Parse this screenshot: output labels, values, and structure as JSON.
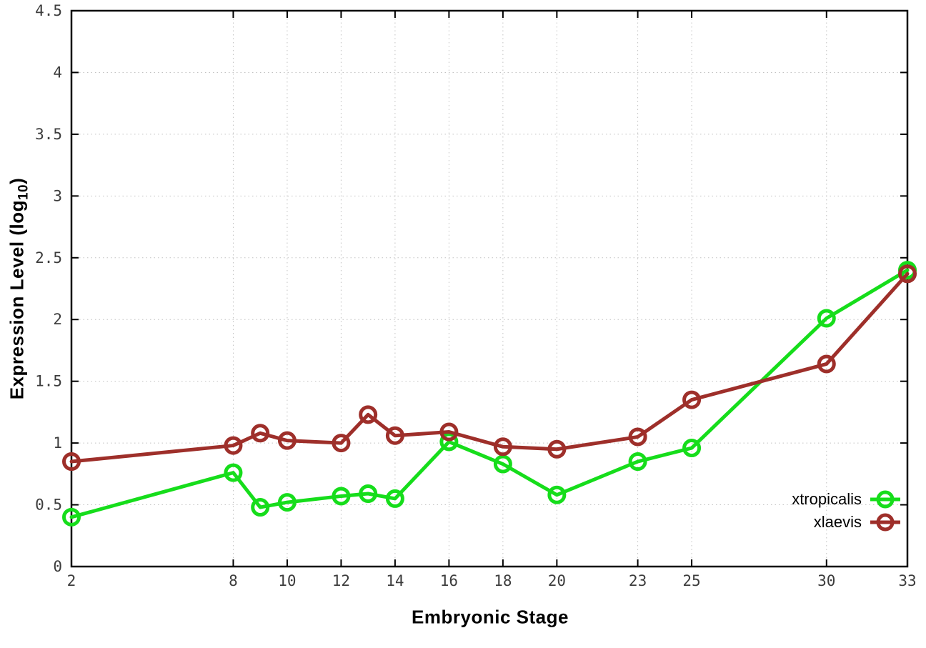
{
  "chart_data": {
    "type": "line",
    "title": "",
    "xlabel": "Embryonic Stage",
    "ylabel_pre": "Expression Level (log",
    "ylabel_sub": "10",
    "ylabel_post": ")",
    "x": [
      2,
      8,
      9,
      10,
      12,
      13,
      14,
      16,
      18,
      20,
      23,
      25,
      30,
      33
    ],
    "series": [
      {
        "name": "xtropicalis",
        "color": "#16dd1b",
        "values": [
          0.4,
          0.76,
          0.48,
          0.52,
          0.57,
          0.59,
          0.55,
          1.01,
          0.83,
          0.58,
          0.85,
          0.96,
          2.01,
          2.4
        ]
      },
      {
        "name": "xlaevis",
        "color": "#9e2f2a",
        "values": [
          0.85,
          0.98,
          1.08,
          1.02,
          1.0,
          1.23,
          1.06,
          1.09,
          0.97,
          0.95,
          1.05,
          1.35,
          1.64,
          2.37
        ]
      }
    ],
    "xlim": [
      2,
      33
    ],
    "ylim": [
      0,
      4.5
    ],
    "xtick_values": [
      2,
      8,
      10,
      12,
      14,
      16,
      18,
      20,
      23,
      25,
      30,
      33
    ],
    "xtick_labels": [
      "2",
      "8",
      "10",
      "12",
      "14",
      "16",
      "18",
      "20",
      "23",
      "25",
      "30",
      "33"
    ],
    "ytick_values": [
      0,
      0.5,
      1,
      1.5,
      2,
      2.5,
      3,
      3.5,
      4,
      4.5
    ],
    "ytick_labels": [
      "0",
      "0.5",
      "1",
      "1.5",
      "2",
      "2.5",
      "3",
      "3.5",
      "4",
      "4.5"
    ],
    "grid": "dotted",
    "legend_position": "inside-bottom-right",
    "marker": "open-circle",
    "colors": {
      "axis": "#000000",
      "grid": "#c2c2c2",
      "tick_text": "#3c3c3c",
      "background": "#ffffff"
    }
  }
}
